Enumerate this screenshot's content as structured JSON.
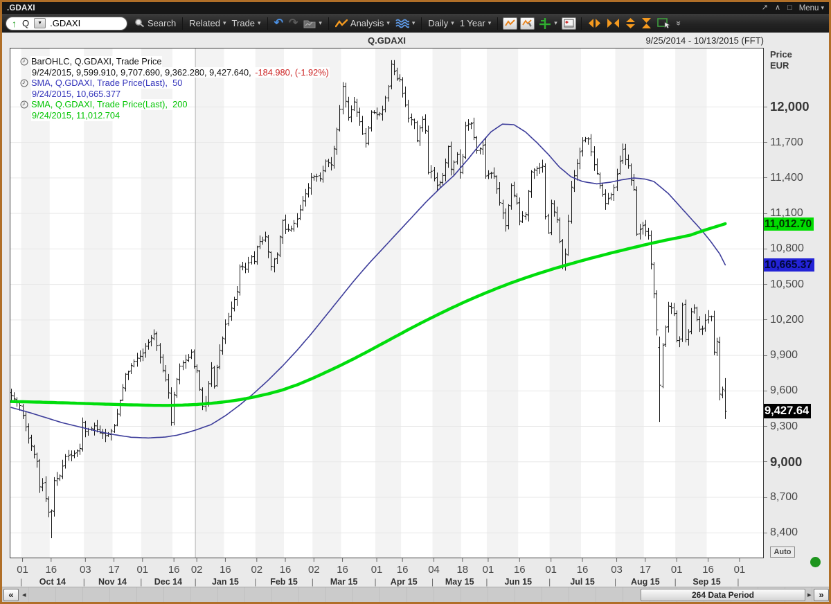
{
  "titlebar": {
    "title": ".GDAXI",
    "menu_label": "Menu"
  },
  "icons": {
    "caret": "▾",
    "up_arrow": "↑",
    "undo": "↶",
    "redo": "↷",
    "popout": "↗",
    "collapse": "∧",
    "window": "□",
    "double_chevron_down": "»",
    "scroll_far_left": "«",
    "scroll_left": "◂",
    "scroll_right": "▸",
    "scroll_far_right": "»"
  },
  "toolbar": {
    "symbol_prefix": "Q",
    "symbol_input": ".GDAXI",
    "search_label": "Search",
    "related_label": "Related",
    "trade_label": "Trade",
    "analysis_label": "Analysis",
    "period_label": "Daily",
    "range_label": "1 Year"
  },
  "chart": {
    "title": "Q.GDAXI",
    "date_range": "9/25/2014 - 10/13/2015 (FFT)",
    "axis_price_label": "Price",
    "axis_currency_label": "EUR",
    "auto_label": "Auto",
    "legend": {
      "bar_line1": "BarOHLC, Q.GDAXI, Trade Price",
      "bar_line2": "9/24/2015, 9,599.910, 9,707.690, 9,362.280, 9,427.640, ",
      "bar_line2_neg": "-184.980, (-1.92%)",
      "sma50_line1": "SMA, Q.GDAXI, Trade Price(Last),  50",
      "sma50_line2": "9/24/2015, 10,665.377",
      "sma200_line1": "SMA, Q.GDAXI, Trade Price(Last),  200",
      "sma200_line2": "9/24/2015, 11,012.704"
    }
  },
  "scrollbar": {
    "thumb_label": "264 Data Period"
  },
  "chart_data": {
    "type": "ohlc-with-overlays",
    "symbol": "Q.GDAXI",
    "period": "Daily",
    "range_label": "1 Year",
    "x_start_date": "9/25/2014",
    "x_end_date": "10/13/2015",
    "total_columns": 264,
    "last_bar_day": 250,
    "seed": 11,
    "year_line_column": 65,
    "final_boundary": 255,
    "final_boundary_label": "01",
    "last_bar": {
      "date": "9/24/2015",
      "open": 9599.91,
      "high": 9707.69,
      "low": 9362.28,
      "close": 9427.64,
      "net_change": -184.98,
      "pct_change": "(-1.92%)"
    },
    "y_axis": {
      "min": 8185,
      "max": 12500,
      "tick_interval": 300,
      "ticks": [
        8400,
        8700,
        9000,
        9300,
        9600,
        9900,
        10200,
        10500,
        10800,
        11100,
        11400,
        11700,
        12000
      ],
      "bold_ticks": [
        9000,
        12000
      ],
      "currency": "EUR"
    },
    "badges": [
      {
        "value": "11,012.70",
        "price": 11012.704,
        "bg": "#00dd00",
        "fg": "#003300",
        "kind": "sma200"
      },
      {
        "value": "10,665.37",
        "price": 10665.377,
        "bg": "#2323d6",
        "fg": "#00083a",
        "kind": "sma50"
      },
      {
        "value": "9,427.64",
        "price": 9427.64,
        "bg": "#000000",
        "fg": "#ffffff",
        "kind": "last-price"
      }
    ],
    "months": [
      {
        "label": "Oct 14",
        "start": 4,
        "mid": 14,
        "d1": "01",
        "d2": "16"
      },
      {
        "label": "Nov 14",
        "start": 26,
        "mid": 36,
        "d1": "03",
        "d2": "17"
      },
      {
        "label": "Dec 14",
        "start": 46,
        "mid": 57,
        "d1": "01",
        "d2": "16"
      },
      {
        "label": "Jan 15",
        "start": 65,
        "mid": 75,
        "d1": "02",
        "d2": "16"
      },
      {
        "label": "Feb 15",
        "start": 86,
        "mid": 96,
        "d1": "02",
        "d2": "16"
      },
      {
        "label": "Mar 15",
        "start": 106,
        "mid": 116,
        "d1": "02",
        "d2": "16"
      },
      {
        "label": "Apr 15",
        "start": 128,
        "mid": 137,
        "d1": "01",
        "d2": "16"
      },
      {
        "label": "May 15",
        "start": 148,
        "mid": 158,
        "d1": "04",
        "d2": "18"
      },
      {
        "label": "Jun 15",
        "start": 167,
        "mid": 178,
        "d1": "01",
        "d2": "16"
      },
      {
        "label": "Jul 15",
        "start": 189,
        "mid": 200,
        "d1": "01",
        "d2": "16"
      },
      {
        "label": "Aug 15",
        "start": 212,
        "mid": 222,
        "d1": "03",
        "d2": "17"
      },
      {
        "label": "Sep 15",
        "start": 233,
        "mid": 244,
        "d1": "01",
        "d2": "16"
      }
    ],
    "close_keypoints": [
      [
        0,
        9560
      ],
      [
        3,
        9474
      ],
      [
        4,
        9382
      ],
      [
        6,
        9209
      ],
      [
        8,
        9060
      ],
      [
        9,
        9005
      ],
      [
        10,
        8789
      ],
      [
        11,
        8812
      ],
      [
        13,
        8571
      ],
      [
        14,
        8583
      ],
      [
        15,
        8850
      ],
      [
        17,
        8887
      ],
      [
        19,
        9047
      ],
      [
        22,
        9068
      ],
      [
        24,
        9115
      ],
      [
        25,
        9327
      ],
      [
        26,
        9251
      ],
      [
        29,
        9302
      ],
      [
        33,
        9210
      ],
      [
        36,
        9300
      ],
      [
        40,
        9733
      ],
      [
        44,
        9880
      ],
      [
        46,
        9930
      ],
      [
        50,
        10087
      ],
      [
        52,
        9880
      ],
      [
        55,
        9595
      ],
      [
        56,
        9334
      ],
      [
        57,
        9564
      ],
      [
        59,
        9811
      ],
      [
        61,
        9865
      ],
      [
        63,
        9922
      ],
      [
        64,
        9806
      ],
      [
        65,
        9765
      ],
      [
        67,
        9469
      ],
      [
        68,
        9506
      ],
      [
        70,
        9800
      ],
      [
        71,
        9648
      ],
      [
        73,
        9941
      ],
      [
        75,
        10167
      ],
      [
        77,
        10290
      ],
      [
        79,
        10436
      ],
      [
        80,
        10650
      ],
      [
        82,
        10628
      ],
      [
        84,
        10738
      ],
      [
        85,
        10694
      ],
      [
        86,
        10828
      ],
      [
        89,
        10905
      ],
      [
        91,
        10663
      ],
      [
        93,
        10754
      ],
      [
        95,
        11050
      ],
      [
        96,
        10963
      ],
      [
        98,
        10961
      ],
      [
        100,
        11050
      ],
      [
        102,
        11205
      ],
      [
        104,
        11327
      ],
      [
        105,
        11402
      ],
      [
        106,
        11410
      ],
      [
        108,
        11390
      ],
      [
        110,
        11551
      ],
      [
        112,
        11500
      ],
      [
        114,
        11799
      ],
      [
        116,
        12167
      ],
      [
        118,
        11922
      ],
      [
        120,
        12039
      ],
      [
        122,
        11872
      ],
      [
        124,
        11686
      ],
      [
        126,
        11966
      ],
      [
        128,
        11936
      ],
      [
        130,
        11967
      ],
      [
        132,
        12166
      ],
      [
        133,
        12375
      ],
      [
        135,
        12228
      ],
      [
        136,
        12231
      ],
      [
        137,
        12109
      ],
      [
        139,
        11917
      ],
      [
        141,
        11868
      ],
      [
        142,
        11724
      ],
      [
        144,
        11905
      ],
      [
        145,
        11811
      ],
      [
        146,
        11433
      ],
      [
        147,
        11454
      ],
      [
        149,
        11328
      ],
      [
        150,
        11350
      ],
      [
        151,
        11408
      ],
      [
        153,
        11673
      ],
      [
        154,
        11472
      ],
      [
        156,
        11600
      ],
      [
        157,
        11447
      ],
      [
        158,
        11591
      ],
      [
        159,
        11850
      ],
      [
        161,
        11864
      ],
      [
        163,
        11625
      ],
      [
        165,
        11678
      ],
      [
        166,
        11414
      ],
      [
        167,
        11436
      ],
      [
        169,
        11420
      ],
      [
        171,
        11197
      ],
      [
        173,
        11001
      ],
      [
        175,
        11332
      ],
      [
        177,
        11197
      ],
      [
        178,
        11044
      ],
      [
        180,
        11100
      ],
      [
        182,
        11460
      ],
      [
        184,
        11471
      ],
      [
        186,
        11492
      ],
      [
        187,
        11083
      ],
      [
        188,
        10945
      ],
      [
        189,
        11180
      ],
      [
        191,
        11058
      ],
      [
        193,
        10676
      ],
      [
        194,
        10747
      ],
      [
        196,
        11316
      ],
      [
        198,
        11517
      ],
      [
        200,
        11716
      ],
      [
        202,
        11735
      ],
      [
        204,
        11521
      ],
      [
        206,
        11347
      ],
      [
        208,
        11173
      ],
      [
        210,
        11258
      ],
      [
        211,
        11309
      ],
      [
        212,
        11443
      ],
      [
        214,
        11636
      ],
      [
        216,
        11490
      ],
      [
        218,
        11293
      ],
      [
        219,
        10925
      ],
      [
        221,
        10985
      ],
      [
        223,
        10916
      ],
      [
        225,
        10432
      ],
      [
        226,
        10124
      ],
      [
        227,
        9648
      ],
      [
        228,
        9997
      ],
      [
        229,
        10128
      ],
      [
        230,
        10315
      ],
      [
        231,
        10299
      ],
      [
        232,
        10259
      ],
      [
        233,
        10016
      ],
      [
        234,
        10048
      ],
      [
        235,
        10318
      ],
      [
        236,
        10038
      ],
      [
        237,
        10109
      ],
      [
        238,
        10271
      ],
      [
        239,
        10303
      ],
      [
        240,
        10210
      ],
      [
        241,
        10124
      ],
      [
        242,
        10132
      ],
      [
        243,
        10188
      ],
      [
        244,
        10227
      ],
      [
        245,
        10229
      ],
      [
        246,
        9916
      ],
      [
        247,
        10021
      ],
      [
        248,
        9571
      ],
      [
        249,
        9612
      ],
      [
        250,
        9427.64
      ]
    ],
    "special_bars": {
      "14": {
        "low": 8355
      },
      "227": {
        "open": 9967,
        "high": 10059,
        "low": 9338,
        "close": 9648
      },
      "250": {
        "open": 9599.91,
        "high": 9707.69,
        "low": 9362.28,
        "close": 9427.64
      }
    },
    "sma50": {
      "period": 50,
      "last": 10665.377,
      "color": "#3c3c9a",
      "width": 1.6,
      "keypoints": [
        [
          0,
          9460
        ],
        [
          6,
          9420
        ],
        [
          12,
          9375
        ],
        [
          18,
          9330
        ],
        [
          24,
          9295
        ],
        [
          30,
          9260
        ],
        [
          36,
          9230
        ],
        [
          42,
          9208
        ],
        [
          48,
          9202
        ],
        [
          54,
          9210
        ],
        [
          58,
          9225
        ],
        [
          62,
          9250
        ],
        [
          65,
          9272
        ],
        [
          70,
          9315
        ],
        [
          75,
          9390
        ],
        [
          80,
          9480
        ],
        [
          85,
          9580
        ],
        [
          90,
          9690
        ],
        [
          95,
          9810
        ],
        [
          100,
          9940
        ],
        [
          105,
          10080
        ],
        [
          110,
          10230
        ],
        [
          115,
          10380
        ],
        [
          120,
          10530
        ],
        [
          125,
          10670
        ],
        [
          130,
          10800
        ],
        [
          135,
          10930
        ],
        [
          140,
          11060
        ],
        [
          145,
          11190
        ],
        [
          150,
          11310
        ],
        [
          155,
          11420
        ],
        [
          160,
          11560
        ],
        [
          164,
          11680
        ],
        [
          168,
          11790
        ],
        [
          172,
          11855
        ],
        [
          176,
          11850
        ],
        [
          180,
          11790
        ],
        [
          184,
          11700
        ],
        [
          188,
          11600
        ],
        [
          192,
          11490
        ],
        [
          196,
          11410
        ],
        [
          200,
          11370
        ],
        [
          205,
          11350
        ],
        [
          210,
          11365
        ],
        [
          214,
          11385
        ],
        [
          218,
          11400
        ],
        [
          222,
          11390
        ],
        [
          225,
          11370
        ],
        [
          227,
          11330
        ],
        [
          230,
          11270
        ],
        [
          233,
          11190
        ],
        [
          236,
          11110
        ],
        [
          239,
          11030
        ],
        [
          242,
          10950
        ],
        [
          245,
          10860
        ],
        [
          248,
          10760
        ],
        [
          250,
          10665.377
        ]
      ]
    },
    "sma200": {
      "period": 200,
      "last": 11012.704,
      "color": "#00dd0c",
      "width": 4.4,
      "keypoints": [
        [
          0,
          9510
        ],
        [
          10,
          9505
        ],
        [
          20,
          9498
        ],
        [
          30,
          9490
        ],
        [
          40,
          9483
        ],
        [
          50,
          9478
        ],
        [
          55,
          9477
        ],
        [
          60,
          9480
        ],
        [
          65,
          9485
        ],
        [
          70,
          9495
        ],
        [
          75,
          9508
        ],
        [
          80,
          9525
        ],
        [
          85,
          9548
        ],
        [
          90,
          9575
        ],
        [
          95,
          9608
        ],
        [
          100,
          9650
        ],
        [
          105,
          9700
        ],
        [
          110,
          9755
        ],
        [
          115,
          9812
        ],
        [
          120,
          9872
        ],
        [
          125,
          9935
        ],
        [
          130,
          10000
        ],
        [
          135,
          10065
        ],
        [
          140,
          10130
        ],
        [
          145,
          10192
        ],
        [
          150,
          10252
        ],
        [
          155,
          10310
        ],
        [
          160,
          10365
        ],
        [
          165,
          10417
        ],
        [
          170,
          10466
        ],
        [
          175,
          10512
        ],
        [
          180,
          10555
        ],
        [
          185,
          10595
        ],
        [
          190,
          10633
        ],
        [
          195,
          10668
        ],
        [
          200,
          10702
        ],
        [
          205,
          10734
        ],
        [
          210,
          10765
        ],
        [
          215,
          10795
        ],
        [
          220,
          10824
        ],
        [
          225,
          10852
        ],
        [
          230,
          10878
        ],
        [
          235,
          10902
        ],
        [
          238,
          10918
        ],
        [
          241,
          10944
        ],
        [
          244,
          10968
        ],
        [
          247,
          10990
        ],
        [
          250,
          11012.704
        ]
      ]
    }
  }
}
